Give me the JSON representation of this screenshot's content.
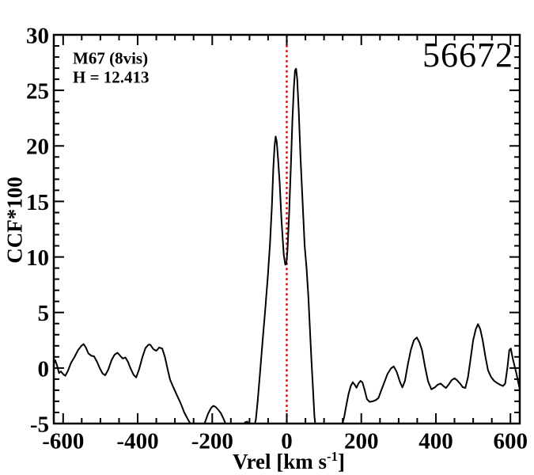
{
  "window": {
    "background": "#ffffff"
  },
  "annotations": {
    "cluster": "M67 (8vis)",
    "h_mag": "H = 12.413",
    "star_id": "56672"
  },
  "axes_titles": {
    "x_label_main": "Vrel [km s",
    "x_label_sup": "-1",
    "x_label_end": "]",
    "y_label": "CCF*100"
  },
  "colors": {
    "curve": "#000000",
    "reference_line": "#e00000",
    "axis": "#000000",
    "background": "#ffffff"
  },
  "chart_data": {
    "type": "line",
    "title": "",
    "xlabel": "Vrel [km s^-1]",
    "ylabel": "CCF*100",
    "xlim": [
      -625,
      625
    ],
    "ylim": [
      -5,
      30
    ],
    "xticks": [
      -600,
      -400,
      -200,
      0,
      200,
      400,
      600
    ],
    "xtick_labels": [
      "-600",
      "-400",
      "-200",
      "0",
      "200",
      "400",
      "600"
    ],
    "x_minor_step": 50,
    "yticks": [
      -5,
      0,
      5,
      10,
      15,
      20,
      25,
      30
    ],
    "ytick_labels": [
      "-5",
      "0",
      "5",
      "10",
      "15",
      "20",
      "25",
      "30"
    ],
    "y_minor_step": 1,
    "grid": false,
    "legend": null,
    "reference_line_x": 0,
    "series": [
      {
        "name": "CCF",
        "points": [
          [
            -625,
            0.35
          ],
          [
            -621,
            0.7
          ],
          [
            -616,
            0.2
          ],
          [
            -611,
            -0.45
          ],
          [
            -606,
            -0.3
          ],
          [
            -600,
            -0.55
          ],
          [
            -594,
            -0.7
          ],
          [
            -587,
            -0.25
          ],
          [
            -579,
            0.45
          ],
          [
            -570,
            0.95
          ],
          [
            -560,
            1.6
          ],
          [
            -551,
            2.0
          ],
          [
            -545,
            2.15
          ],
          [
            -539,
            1.85
          ],
          [
            -532,
            1.3
          ],
          [
            -524,
            1.1
          ],
          [
            -517,
            1.05
          ],
          [
            -509,
            0.55
          ],
          [
            -502,
            0.0
          ],
          [
            -494,
            -0.5
          ],
          [
            -487,
            -0.65
          ],
          [
            -479,
            -0.15
          ],
          [
            -470,
            0.7
          ],
          [
            -462,
            1.2
          ],
          [
            -454,
            1.37
          ],
          [
            -447,
            1.1
          ],
          [
            -440,
            0.85
          ],
          [
            -433,
            0.95
          ],
          [
            -426,
            0.55
          ],
          [
            -419,
            -0.05
          ],
          [
            -411,
            -0.6
          ],
          [
            -404,
            -0.85
          ],
          [
            -396,
            -0.1
          ],
          [
            -387,
            1.0
          ],
          [
            -379,
            1.8
          ],
          [
            -371,
            2.1
          ],
          [
            -366,
            2.1
          ],
          [
            -358,
            1.7
          ],
          [
            -350,
            1.55
          ],
          [
            -342,
            1.85
          ],
          [
            -334,
            1.75
          ],
          [
            -327,
            1.0
          ],
          [
            -319,
            -0.2
          ],
          [
            -313,
            -1.05
          ],
          [
            -306,
            -1.6
          ],
          [
            -296,
            -2.35
          ],
          [
            -285,
            -3.15
          ],
          [
            -275,
            -4.0
          ],
          [
            -264,
            -4.7
          ],
          [
            -256,
            -5.15
          ],
          [
            -248,
            -5.7
          ],
          [
            -240,
            -6.0
          ],
          [
            -232,
            -5.8
          ],
          [
            -225,
            -5.4
          ],
          [
            -218,
            -4.75
          ],
          [
            -211,
            -4.1
          ],
          [
            -203,
            -3.6
          ],
          [
            -197,
            -3.4
          ],
          [
            -191,
            -3.5
          ],
          [
            -184,
            -3.75
          ],
          [
            -177,
            -4.05
          ],
          [
            -170,
            -4.55
          ],
          [
            -163,
            -5.1
          ],
          [
            -156,
            -5.65
          ],
          [
            -148,
            -6.15
          ],
          [
            -140,
            -6.4
          ],
          [
            -130,
            -6.1
          ],
          [
            -119,
            -5.4
          ],
          [
            -112,
            -4.9
          ],
          [
            -106,
            -4.82
          ],
          [
            -101,
            -5.15
          ],
          [
            -96,
            -5.6
          ],
          [
            -89,
            -5.5
          ],
          [
            -83,
            -4.65
          ],
          [
            -78,
            -3.0
          ],
          [
            -72,
            -0.5
          ],
          [
            -65,
            2.4
          ],
          [
            -58,
            5.2
          ],
          [
            -51,
            8.2
          ],
          [
            -45,
            11.2
          ],
          [
            -40,
            14.6
          ],
          [
            -36,
            18.0
          ],
          [
            -33,
            19.9
          ],
          [
            -30,
            20.85
          ],
          [
            -27,
            20.4
          ],
          [
            -23,
            18.6
          ],
          [
            -19,
            16.7
          ],
          [
            -14,
            13.2
          ],
          [
            -8,
            10.2
          ],
          [
            -4,
            9.3
          ],
          [
            -1,
            9.4
          ],
          [
            2,
            10.6
          ],
          [
            6,
            13.6
          ],
          [
            11,
            18.2
          ],
          [
            15,
            22.3
          ],
          [
            19,
            25.3
          ],
          [
            22,
            26.8
          ],
          [
            25,
            26.95
          ],
          [
            28,
            26.0
          ],
          [
            32,
            23.2
          ],
          [
            37,
            18.9
          ],
          [
            43,
            14.5
          ],
          [
            48,
            11.0
          ],
          [
            53,
            9.0
          ],
          [
            58,
            6.4
          ],
          [
            62,
            3.6
          ],
          [
            66,
            0.8
          ],
          [
            70,
            -1.7
          ],
          [
            74,
            -4.3
          ],
          [
            78,
            -5.6
          ],
          [
            88,
            -6.4
          ],
          [
            105,
            -6.9
          ],
          [
            125,
            -6.8
          ],
          [
            140,
            -6.0
          ],
          [
            148,
            -5.2
          ],
          [
            154,
            -4.4
          ],
          [
            160,
            -3.3
          ],
          [
            166,
            -2.3
          ],
          [
            172,
            -1.6
          ],
          [
            177,
            -1.28
          ],
          [
            182,
            -1.5
          ],
          [
            187,
            -1.78
          ],
          [
            192,
            -1.4
          ],
          [
            198,
            -1.16
          ],
          [
            203,
            -1.3
          ],
          [
            209,
            -2.0
          ],
          [
            215,
            -2.8
          ],
          [
            222,
            -3.05
          ],
          [
            231,
            -3.0
          ],
          [
            239,
            -2.88
          ],
          [
            246,
            -2.7
          ],
          [
            253,
            -2.05
          ],
          [
            261,
            -1.35
          ],
          [
            270,
            -0.55
          ],
          [
            279,
            -0.05
          ],
          [
            287,
            0.15
          ],
          [
            295,
            -0.35
          ],
          [
            303,
            -1.2
          ],
          [
            310,
            -1.75
          ],
          [
            317,
            -1.15
          ],
          [
            325,
            0.35
          ],
          [
            333,
            1.65
          ],
          [
            341,
            2.5
          ],
          [
            349,
            2.75
          ],
          [
            356,
            2.3
          ],
          [
            363,
            1.6
          ],
          [
            371,
            0.1
          ],
          [
            379,
            -1.2
          ],
          [
            388,
            -1.92
          ],
          [
            397,
            -1.75
          ],
          [
            405,
            -1.5
          ],
          [
            413,
            -1.4
          ],
          [
            420,
            -1.62
          ],
          [
            427,
            -1.8
          ],
          [
            434,
            -1.5
          ],
          [
            442,
            -1.1
          ],
          [
            450,
            -0.92
          ],
          [
            457,
            -1.1
          ],
          [
            465,
            -1.4
          ],
          [
            472,
            -1.72
          ],
          [
            479,
            -1.8
          ],
          [
            486,
            -0.85
          ],
          [
            493,
            0.8
          ],
          [
            500,
            2.5
          ],
          [
            507,
            3.5
          ],
          [
            513,
            3.95
          ],
          [
            519,
            3.5
          ],
          [
            526,
            2.4
          ],
          [
            533,
            1.0
          ],
          [
            540,
            -0.2
          ],
          [
            548,
            -0.8
          ],
          [
            556,
            -1.15
          ],
          [
            564,
            -1.35
          ],
          [
            572,
            -1.5
          ],
          [
            580,
            -1.62
          ],
          [
            586,
            -1.4
          ],
          [
            592,
            0.1
          ],
          [
            597,
            1.6
          ],
          [
            601,
            1.75
          ],
          [
            606,
            0.9
          ],
          [
            611,
            0.2
          ],
          [
            616,
            -0.5
          ],
          [
            621,
            -1.3
          ],
          [
            625,
            -1.9
          ]
        ]
      }
    ]
  }
}
